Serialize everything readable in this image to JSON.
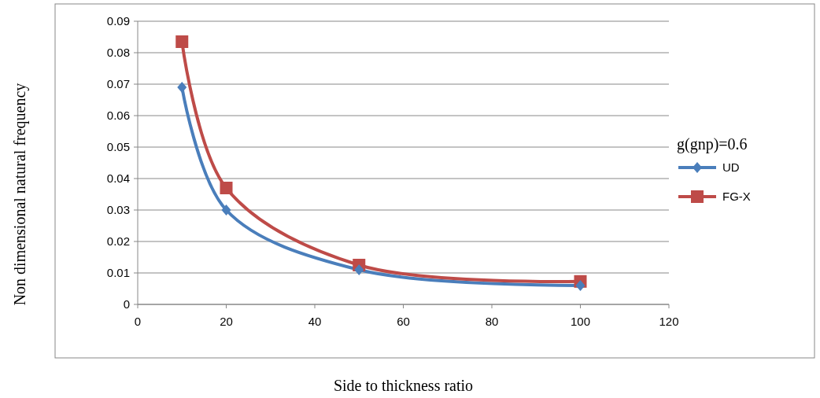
{
  "chart_data": {
    "type": "line",
    "xlabel": "Side to thickness ratio",
    "ylabel": "Non dimensional natural frequency",
    "legend_title": "g(gnp)=0.6",
    "x": [
      10,
      20,
      50,
      100
    ],
    "series": [
      {
        "name": "UD",
        "color": "#4a7ebb",
        "marker": "diamond",
        "values": [
          0.069,
          0.03,
          0.011,
          0.006
        ]
      },
      {
        "name": "FG-X",
        "color": "#be4b48",
        "marker": "square",
        "values": [
          0.0835,
          0.037,
          0.0125,
          0.0073
        ]
      }
    ],
    "xlim": [
      0,
      120
    ],
    "xticks": [
      0,
      20,
      40,
      60,
      80,
      100,
      120
    ],
    "ylim": [
      0,
      0.09
    ],
    "yticks": [
      0,
      0.01,
      0.02,
      0.03,
      0.04,
      0.05,
      0.06,
      0.07,
      0.08,
      0.09
    ],
    "grid": "y",
    "legend": "right"
  }
}
